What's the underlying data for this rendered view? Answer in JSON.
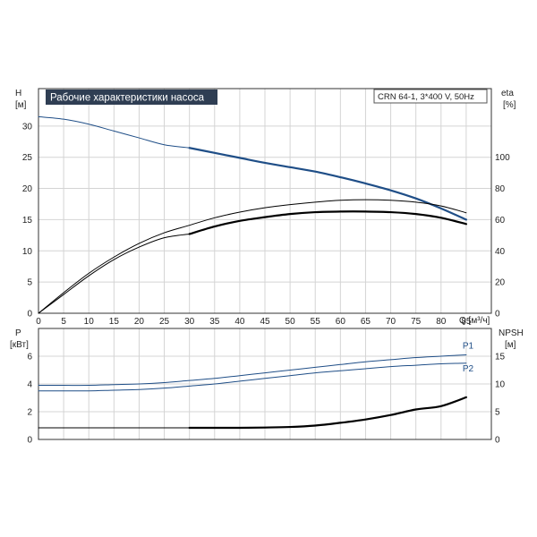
{
  "title": "Рабочие характеристики насоса",
  "model": "CRN 64-1, 3*400 V, 50Hz",
  "colors": {
    "blue": "#1f4e87",
    "black": "#000000",
    "title_bg": "#2f3e53",
    "grid": "#d4d4d4"
  },
  "chart_data": [
    {
      "type": "line",
      "title": "Рабочие характеристики насоса",
      "xlabel": "Q [м³/ч]",
      "x_unit": "[м³/ч]",
      "ylabel": "H",
      "y_unit": "[м]",
      "y2label": "eta",
      "y2_unit": "[%]",
      "xlim": [
        0,
        90
      ],
      "ylim": [
        0,
        36
      ],
      "y2lim": [
        0,
        144
      ],
      "xticks": [
        0,
        5,
        10,
        15,
        20,
        25,
        30,
        35,
        40,
        45,
        50,
        55,
        60,
        65,
        70,
        75,
        80,
        85
      ],
      "yticks": [
        0,
        5,
        10,
        15,
        20,
        25,
        30
      ],
      "y2ticks": [
        0,
        20,
        40,
        60,
        80,
        100
      ],
      "grid": true,
      "series": [
        {
          "name": "",
          "axis": "y",
          "color": "#1f4e87",
          "x": [
            0,
            5,
            10,
            15,
            20,
            25,
            30
          ],
          "values": [
            31.5,
            31.1,
            30.3,
            29.2,
            28.1,
            27.0,
            26.5
          ]
        },
        {
          "name": "",
          "axis": "y",
          "color": "#1f4e87",
          "bold": true,
          "x": [
            30,
            35,
            40,
            45,
            50,
            55,
            60,
            65,
            70,
            75,
            80,
            85
          ],
          "values": [
            26.5,
            25.7,
            24.9,
            24.1,
            23.4,
            22.7,
            21.8,
            20.8,
            19.7,
            18.4,
            16.8,
            15.0
          ]
        },
        {
          "name": "",
          "axis": "y",
          "color": "#000000",
          "x": [
            0,
            5,
            10,
            15,
            20,
            25,
            30,
            35,
            40,
            45,
            50,
            55,
            60,
            65,
            70,
            75,
            80,
            85
          ],
          "values": [
            0,
            3.3,
            6.4,
            9.0,
            11.2,
            12.9,
            14.1,
            15.3,
            16.2,
            16.9,
            17.4,
            17.8,
            18.1,
            18.2,
            18.1,
            17.8,
            17.2,
            16.1
          ]
        },
        {
          "name": "",
          "axis": "y",
          "color": "#000000",
          "x": [
            0,
            5,
            10,
            15,
            20,
            25,
            30
          ],
          "values": [
            0,
            3.0,
            6.0,
            8.6,
            10.6,
            12.1,
            12.7
          ]
        },
        {
          "name": "",
          "axis": "y",
          "color": "#000000",
          "bold": true,
          "x": [
            30,
            35,
            40,
            45,
            50,
            55,
            60,
            65,
            70,
            75,
            80,
            85
          ],
          "values": [
            12.7,
            13.9,
            14.8,
            15.4,
            15.9,
            16.2,
            16.3,
            16.3,
            16.2,
            15.9,
            15.3,
            14.3
          ]
        }
      ]
    },
    {
      "type": "line",
      "xlabel": "",
      "ylabel": "P",
      "y_unit": "[кВт]",
      "y2label": "NPSH",
      "y2_unit": "[м]",
      "xlim": [
        0,
        90
      ],
      "ylim": [
        0,
        8
      ],
      "y2lim": [
        0,
        20
      ],
      "yticks": [
        0,
        2,
        4,
        6
      ],
      "y2ticks": [
        0,
        5,
        10,
        15
      ],
      "grid": true,
      "series": [
        {
          "name": "P1",
          "axis": "y",
          "color": "#1f4e87",
          "x": [
            0,
            5,
            10,
            15,
            20,
            25,
            30,
            35,
            40,
            45,
            50,
            55,
            60,
            65,
            70,
            75,
            80,
            85
          ],
          "values": [
            3.9,
            3.9,
            3.9,
            3.95,
            4.0,
            4.1,
            4.25,
            4.4,
            4.6,
            4.8,
            5.0,
            5.2,
            5.4,
            5.6,
            5.75,
            5.9,
            6.0,
            6.1
          ]
        },
        {
          "name": "P2",
          "axis": "y",
          "color": "#1f4e87",
          "x": [
            0,
            5,
            10,
            15,
            20,
            25,
            30,
            35,
            40,
            45,
            50,
            55,
            60,
            65,
            70,
            75,
            80,
            85
          ],
          "values": [
            3.5,
            3.5,
            3.5,
            3.55,
            3.6,
            3.7,
            3.85,
            4.0,
            4.2,
            4.4,
            4.6,
            4.8,
            4.95,
            5.1,
            5.25,
            5.35,
            5.45,
            5.5
          ]
        },
        {
          "name": "",
          "axis": "y2",
          "color": "#000000",
          "x": [
            0,
            30
          ],
          "values": [
            2.1,
            2.1
          ]
        },
        {
          "name": "",
          "axis": "y2",
          "color": "#000000",
          "bold": true,
          "x": [
            30,
            35,
            40,
            45,
            50,
            55,
            60,
            65,
            70,
            75,
            80,
            85
          ],
          "values": [
            2.1,
            2.1,
            2.1,
            2.15,
            2.25,
            2.5,
            3.0,
            3.6,
            4.4,
            5.4,
            6.0,
            7.6
          ]
        }
      ]
    }
  ]
}
